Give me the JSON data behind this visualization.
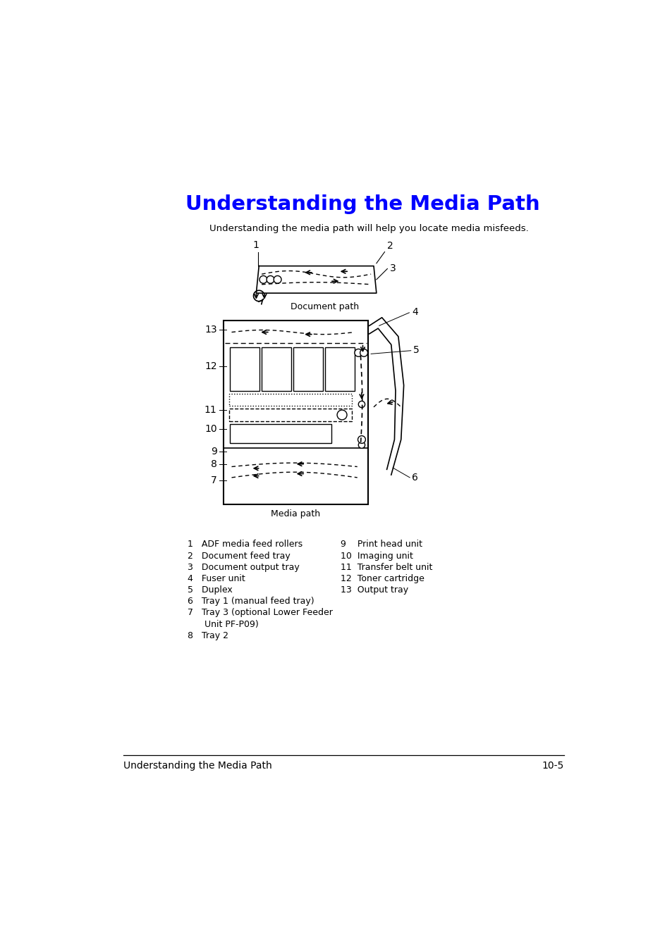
{
  "title": "Understanding the Media Path",
  "title_color": "#0000FF",
  "subtitle": "Understanding the media path will help you locate media misfeeds.",
  "doc_path_label": "Document path",
  "media_path_label": "Media path",
  "footer_left": "Understanding the Media Path",
  "footer_right": "10-5",
  "legend_col1": [
    "1   ADF media feed rollers",
    "2   Document feed tray",
    "3   Document output tray",
    "4   Fuser unit",
    "5   Duplex",
    "6   Tray 1 (manual feed tray)",
    "7   Tray 3 (optional Lower Feeder",
    "      Unit PF-P09)",
    "8   Tray 2"
  ],
  "legend_col2": [
    "9    Print head unit",
    "10  Imaging unit",
    "11  Transfer belt unit",
    "12  Toner cartridge",
    "13  Output tray"
  ],
  "background": "#ffffff",
  "text_color": "#000000"
}
